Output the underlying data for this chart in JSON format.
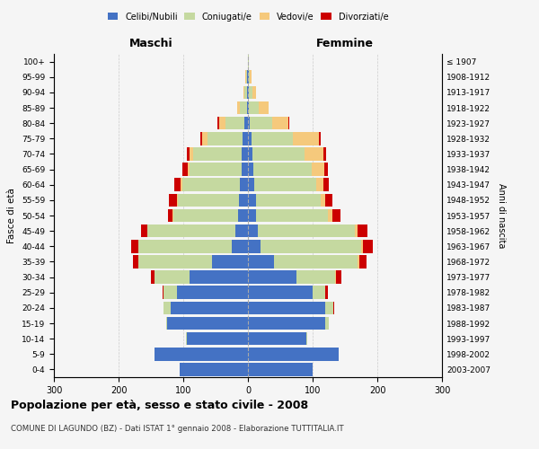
{
  "age_groups": [
    "0-4",
    "5-9",
    "10-14",
    "15-19",
    "20-24",
    "25-29",
    "30-34",
    "35-39",
    "40-44",
    "45-49",
    "50-54",
    "55-59",
    "60-64",
    "65-69",
    "70-74",
    "75-79",
    "80-84",
    "85-89",
    "90-94",
    "95-99",
    "100+"
  ],
  "birth_years": [
    "2003-2007",
    "1998-2002",
    "1993-1997",
    "1988-1992",
    "1983-1987",
    "1978-1982",
    "1973-1977",
    "1968-1972",
    "1963-1967",
    "1958-1962",
    "1953-1957",
    "1948-1952",
    "1943-1947",
    "1938-1942",
    "1933-1937",
    "1928-1932",
    "1923-1927",
    "1918-1922",
    "1913-1917",
    "1908-1912",
    "≤ 1907"
  ],
  "males": {
    "celibe": [
      105,
      145,
      95,
      125,
      120,
      110,
      90,
      55,
      25,
      20,
      15,
      14,
      12,
      10,
      10,
      8,
      5,
      2,
      1,
      1,
      0
    ],
    "coniugato": [
      0,
      0,
      1,
      2,
      10,
      20,
      55,
      115,
      145,
      135,
      100,
      95,
      90,
      80,
      75,
      55,
      30,
      10,
      4,
      2,
      0
    ],
    "vedovo": [
      0,
      0,
      0,
      0,
      0,
      0,
      0,
      0,
      0,
      0,
      1,
      1,
      2,
      3,
      5,
      8,
      10,
      5,
      2,
      1,
      0
    ],
    "divorziato": [
      0,
      0,
      0,
      0,
      1,
      2,
      5,
      8,
      10,
      10,
      8,
      12,
      10,
      8,
      5,
      3,
      2,
      0,
      0,
      0,
      0
    ]
  },
  "females": {
    "nubile": [
      100,
      140,
      90,
      120,
      120,
      100,
      75,
      40,
      20,
      15,
      13,
      12,
      10,
      8,
      7,
      5,
      3,
      2,
      2,
      1,
      0
    ],
    "coniugata": [
      0,
      0,
      2,
      5,
      12,
      20,
      60,
      130,
      155,
      150,
      110,
      100,
      95,
      90,
      80,
      65,
      35,
      15,
      5,
      2,
      1
    ],
    "vedova": [
      0,
      0,
      0,
      0,
      0,
      0,
      1,
      2,
      3,
      5,
      8,
      8,
      12,
      20,
      30,
      40,
      25,
      15,
      5,
      2,
      0
    ],
    "divorziata": [
      0,
      0,
      0,
      0,
      1,
      3,
      8,
      12,
      15,
      15,
      12,
      10,
      8,
      6,
      4,
      2,
      1,
      0,
      0,
      0,
      0
    ]
  },
  "colors": {
    "celibe": "#4472C4",
    "coniugato": "#C5D9A0",
    "vedovo": "#F5C97C",
    "divorziato": "#CC0000"
  },
  "title": "Popolazione per età, sesso e stato civile - 2008",
  "subtitle": "COMUNE DI LAGUNDO (BZ) - Dati ISTAT 1° gennaio 2008 - Elaborazione TUTTITALIA.IT",
  "xlabel_left": "Maschi",
  "xlabel_right": "Femmine",
  "ylabel_left": "Fasce di età",
  "ylabel_right": "Anni di nascita",
  "xlim": 300,
  "background_color": "#f5f5f5",
  "grid_color": "#cccccc"
}
